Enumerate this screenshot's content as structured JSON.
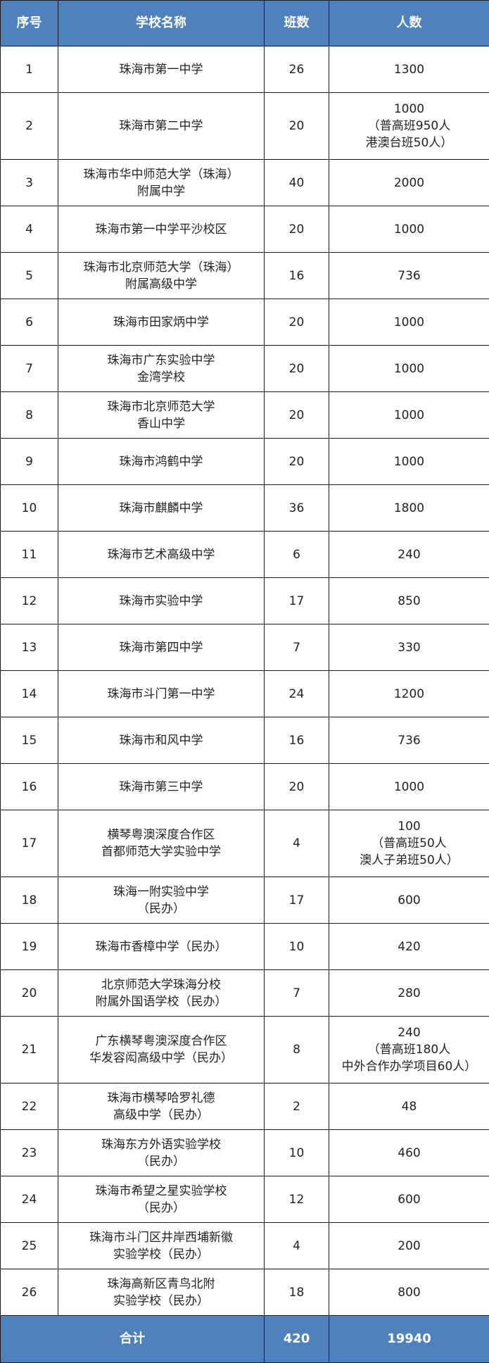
{
  "header": {
    "index": "序号",
    "school": "学校名称",
    "classes": "班数",
    "students": "人数"
  },
  "colors": {
    "header_bg": "#4f81bd",
    "header_text": "#ffffff"
  },
  "rows": [
    {
      "index": "1",
      "school": [
        "珠海市第一中学"
      ],
      "classes": "26",
      "students": [
        "1300"
      ]
    },
    {
      "index": "2",
      "school": [
        "珠海市第二中学"
      ],
      "classes": "20",
      "students": [
        "1000",
        "（普高班950人",
        "港澳台班50人）"
      ]
    },
    {
      "index": "3",
      "school": [
        "珠海市华中师范大学（珠海）",
        "附属中学"
      ],
      "classes": "40",
      "students": [
        "2000"
      ]
    },
    {
      "index": "4",
      "school": [
        "珠海市第一中学平沙校区"
      ],
      "classes": "20",
      "students": [
        "1000"
      ]
    },
    {
      "index": "5",
      "school": [
        "珠海市北京师范大学（珠海）",
        "附属高级中学"
      ],
      "classes": "16",
      "students": [
        "736"
      ]
    },
    {
      "index": "6",
      "school": [
        "珠海市田家炳中学"
      ],
      "classes": "20",
      "students": [
        "1000"
      ]
    },
    {
      "index": "7",
      "school": [
        "珠海市广东实验中学",
        "金湾学校"
      ],
      "classes": "20",
      "students": [
        "1000"
      ]
    },
    {
      "index": "8",
      "school": [
        "珠海市北京师范大学",
        "香山中学"
      ],
      "classes": "20",
      "students": [
        "1000"
      ]
    },
    {
      "index": "9",
      "school": [
        "珠海市鸿鹤中学"
      ],
      "classes": "20",
      "students": [
        "1000"
      ]
    },
    {
      "index": "10",
      "school": [
        "珠海市麒麟中学"
      ],
      "classes": "36",
      "students": [
        "1800"
      ]
    },
    {
      "index": "11",
      "school": [
        "珠海市艺术高级中学"
      ],
      "classes": "6",
      "students": [
        "240"
      ]
    },
    {
      "index": "12",
      "school": [
        "珠海市实验中学"
      ],
      "classes": "17",
      "students": [
        "850"
      ]
    },
    {
      "index": "13",
      "school": [
        "珠海市第四中学"
      ],
      "classes": "7",
      "students": [
        "330"
      ]
    },
    {
      "index": "14",
      "school": [
        "珠海市斗门第一中学"
      ],
      "classes": "24",
      "students": [
        "1200"
      ]
    },
    {
      "index": "15",
      "school": [
        "珠海市和风中学"
      ],
      "classes": "16",
      "students": [
        "736"
      ]
    },
    {
      "index": "16",
      "school": [
        "珠海市第三中学"
      ],
      "classes": "20",
      "students": [
        "1000"
      ]
    },
    {
      "index": "17",
      "school": [
        "横琴粤澳深度合作区",
        "首都师范大学实验中学"
      ],
      "classes": "4",
      "students": [
        "100",
        "（普高班50人",
        "澳人子弟班50人）"
      ]
    },
    {
      "index": "18",
      "school": [
        "珠海一附实验中学",
        "（民办）"
      ],
      "classes": "17",
      "students": [
        "600"
      ]
    },
    {
      "index": "19",
      "school": [
        "珠海市香樟中学（民办）"
      ],
      "classes": "10",
      "students": [
        "420"
      ]
    },
    {
      "index": "20",
      "school": [
        "北京师范大学珠海分校",
        "附属外国语学校（民办）"
      ],
      "classes": "7",
      "students": [
        "280"
      ]
    },
    {
      "index": "21",
      "school": [
        "广东横琴粤澳深度合作区",
        "华发容闳高级中学（民办）"
      ],
      "classes": "8",
      "students": [
        "240",
        "（普高班180人",
        "中外合作办学项目60人）"
      ]
    },
    {
      "index": "22",
      "school": [
        "珠海市横琴哈罗礼德",
        "高级中学（民办）"
      ],
      "classes": "2",
      "students": [
        "48"
      ]
    },
    {
      "index": "23",
      "school": [
        "珠海东方外语实验学校",
        "（民办）"
      ],
      "classes": "10",
      "students": [
        "460"
      ]
    },
    {
      "index": "24",
      "school": [
        "珠海市希望之星实验学校",
        "（民办）"
      ],
      "classes": "12",
      "students": [
        "600"
      ]
    },
    {
      "index": "25",
      "school": [
        "珠海市斗门区井岸西埔新徽",
        "实验学校（民办）"
      ],
      "classes": "4",
      "students": [
        "200"
      ]
    },
    {
      "index": "26",
      "school": [
        "珠海高新区青鸟北附",
        "实验学校（民办）"
      ],
      "classes": "18",
      "students": [
        "800"
      ]
    }
  ],
  "footer": {
    "label": "合计",
    "classes": "420",
    "students": "19940"
  }
}
